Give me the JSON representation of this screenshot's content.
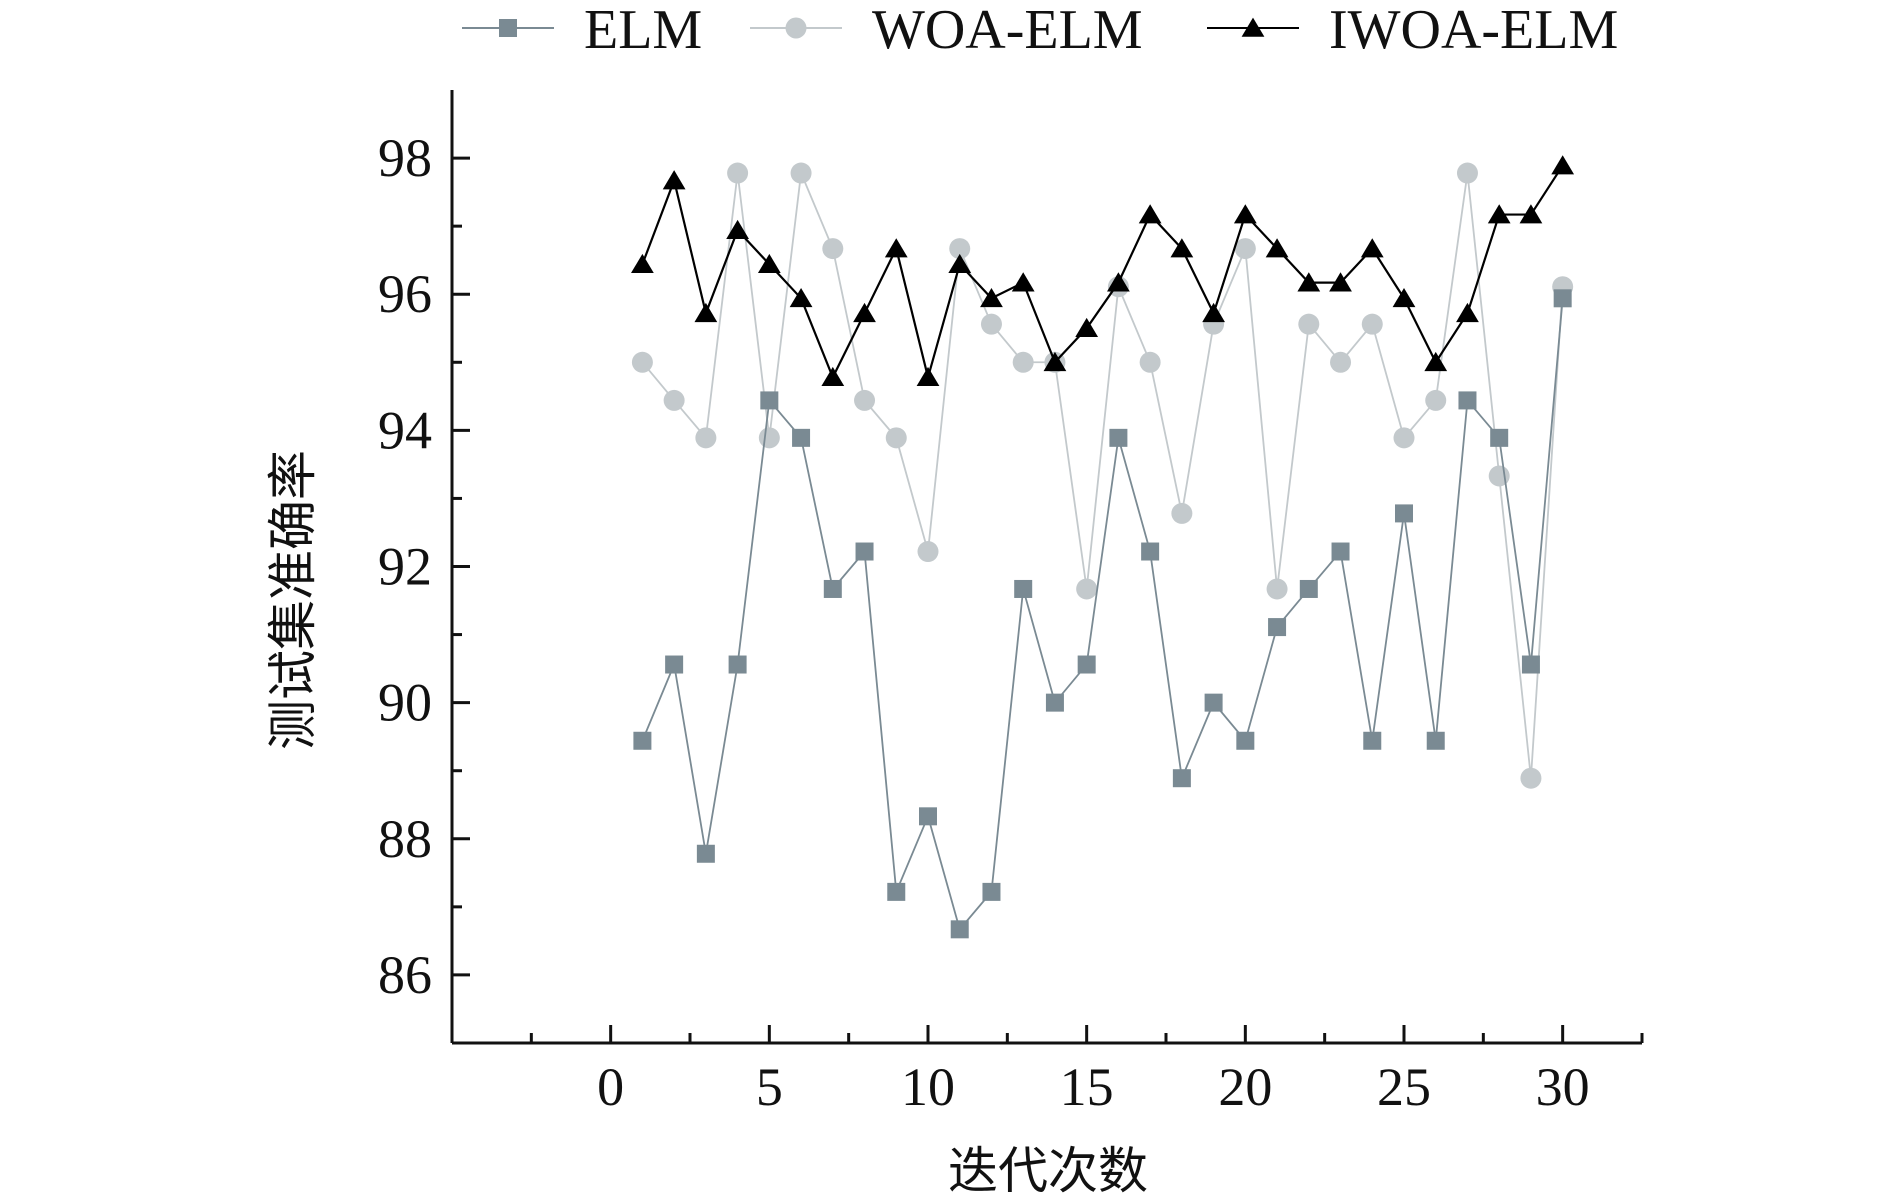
{
  "chart_data": {
    "type": "line",
    "title": "",
    "xlabel": "迭代次数",
    "ylabel": "测试集准确率",
    "xlim": [
      -5,
      32.5
    ],
    "ylim": [
      85,
      99
    ],
    "xticks": [
      0,
      5,
      10,
      15,
      20,
      25,
      30
    ],
    "yticks": [
      86,
      88,
      90,
      92,
      94,
      96,
      98
    ],
    "x": [
      1,
      2,
      3,
      4,
      5,
      6,
      7,
      8,
      9,
      10,
      11,
      12,
      13,
      14,
      15,
      16,
      17,
      18,
      19,
      20,
      21,
      22,
      23,
      24,
      25,
      26,
      27,
      28,
      29,
      30
    ],
    "legend_position": "top",
    "series": [
      {
        "name": "ELM",
        "marker": "square",
        "color": "#7a8a93",
        "values": [
          89.44,
          90.56,
          87.78,
          90.56,
          94.44,
          93.89,
          91.67,
          92.22,
          87.22,
          88.33,
          86.67,
          87.22,
          91.67,
          90.0,
          90.56,
          93.89,
          92.22,
          88.89,
          90.0,
          89.44,
          91.11,
          91.67,
          92.22,
          89.44,
          92.78,
          89.44,
          94.44,
          93.89,
          90.56,
          95.94
        ]
      },
      {
        "name": "WOA-ELM",
        "marker": "circle",
        "color": "#c3c9cc",
        "values": [
          95.0,
          94.44,
          93.89,
          97.78,
          93.89,
          97.78,
          96.67,
          94.44,
          93.89,
          92.22,
          96.67,
          95.56,
          95.0,
          95.0,
          91.67,
          96.11,
          95.0,
          92.78,
          95.56,
          96.67,
          91.67,
          95.56,
          95.0,
          95.56,
          93.89,
          94.44,
          97.78,
          93.33,
          88.89,
          96.11
        ]
      },
      {
        "name": "IWOA-ELM",
        "marker": "triangle",
        "color": "#000000",
        "values": [
          96.44,
          97.67,
          95.72,
          96.94,
          96.44,
          95.94,
          94.78,
          95.72,
          96.67,
          94.78,
          96.44,
          95.94,
          96.17,
          95.0,
          95.5,
          96.17,
          97.17,
          96.67,
          95.72,
          97.17,
          96.67,
          96.17,
          96.17,
          96.67,
          95.94,
          95.0,
          95.72,
          97.17,
          97.17,
          97.89
        ]
      }
    ]
  }
}
